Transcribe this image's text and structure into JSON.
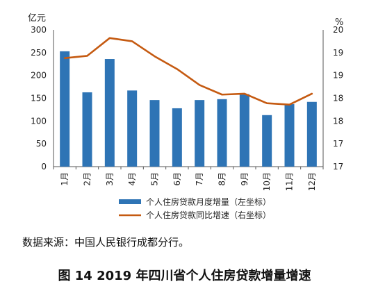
{
  "figure": {
    "source_note": "数据来源：中国人民银行成都分行。",
    "caption": "图 14 2019 年四川省个人住房贷款增量增速"
  },
  "chart_data": {
    "type": "bar+line",
    "categories": [
      "1月",
      "2月",
      "3月",
      "4月",
      "5月",
      "6月",
      "7月",
      "8月",
      "9月",
      "10月",
      "11月",
      "12月"
    ],
    "left_axis": {
      "unit": "亿元",
      "ylim": [
        0,
        300
      ],
      "ticks": [
        0,
        50,
        100,
        150,
        200,
        250,
        300
      ]
    },
    "right_axis": {
      "unit": "%",
      "ylim": [
        17,
        20
      ],
      "tick_values": [
        17,
        17.5,
        18,
        18.5,
        19,
        19.5,
        20
      ],
      "tick_labels": [
        "17",
        "17",
        "18",
        "18",
        "19",
        "19",
        "20"
      ]
    },
    "series": [
      {
        "name": "个人住房贷款月度增量（左坐标）",
        "type": "bar",
        "axis": "left",
        "color": "#2e74b5",
        "values": [
          253,
          163,
          236,
          167,
          146,
          128,
          146,
          148,
          159,
          113,
          137,
          142
        ]
      },
      {
        "name": "个人住房贷款同比增速（右坐标）",
        "type": "line",
        "axis": "right",
        "color": "#c55a11",
        "values": [
          19.38,
          19.43,
          19.82,
          19.75,
          19.42,
          19.14,
          18.79,
          18.58,
          18.6,
          18.39,
          18.36,
          18.6
        ]
      }
    ],
    "grid": false,
    "legend_position": "bottom"
  }
}
